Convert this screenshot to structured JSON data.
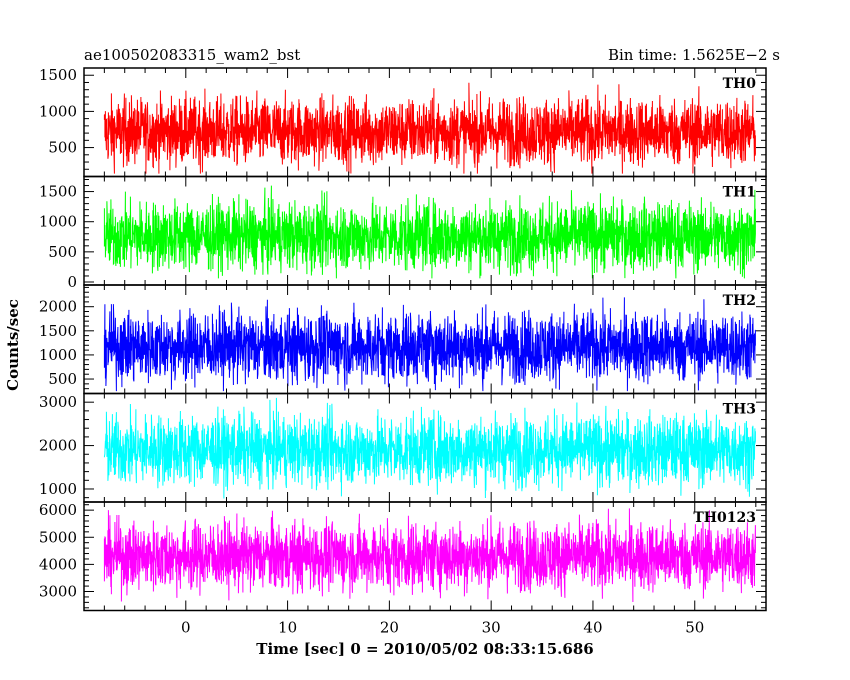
{
  "chart_data": {
    "type": "line",
    "title_left": "ae100502083315_wam2_bst",
    "title_right": "Bin time: 1.5625E−2 s",
    "xlabel": "Time [sec] 0 = 2010/05/02 08:33:15.686",
    "ylabel": "Counts/sec",
    "xlim": [
      -10,
      57
    ],
    "x_ticks": [
      0,
      10,
      20,
      30,
      40,
      50
    ],
    "x_tick_labels": [
      "0",
      "10",
      "20",
      "30",
      "40",
      "50"
    ],
    "x_data_range": [
      -8,
      56
    ],
    "panels": [
      {
        "name": "TH0",
        "color": "#ff0000",
        "ylim": [
          100,
          1600
        ],
        "y_ticks": [
          500,
          1000,
          1500
        ],
        "y_tick_labels": [
          "500",
          "1000",
          "1500"
        ],
        "mean": 720,
        "spread": 230,
        "min": 140,
        "max": 1580
      },
      {
        "name": "TH1",
        "color": "#00ff00",
        "ylim": [
          -50,
          1750
        ],
        "y_ticks": [
          0,
          500,
          1000,
          1500
        ],
        "y_tick_labels": [
          "0",
          "500",
          "1000",
          "1500"
        ],
        "mean": 760,
        "spread": 280,
        "min": 60,
        "max": 1700
      },
      {
        "name": "TH2",
        "color": "#0000ff",
        "ylim": [
          200,
          2450
        ],
        "y_ticks": [
          500,
          1000,
          1500,
          2000
        ],
        "y_tick_labels": [
          "500",
          "1000",
          "1500",
          "2000"
        ],
        "mean": 1170,
        "spread": 360,
        "min": 250,
        "max": 2450
      },
      {
        "name": "TH3",
        "color": "#00ffff",
        "ylim": [
          700,
          3200
        ],
        "y_ticks": [
          1000,
          2000,
          3000
        ],
        "y_tick_labels": [
          "1000",
          "2000",
          "3000"
        ],
        "mean": 1900,
        "spread": 400,
        "min": 780,
        "max": 3200
      },
      {
        "name": "TH0123",
        "color": "#ff00ff",
        "ylim": [
          2300,
          6300
        ],
        "y_ticks": [
          3000,
          4000,
          5000,
          6000
        ],
        "y_tick_labels": [
          "3000",
          "4000",
          "5000",
          "6000"
        ],
        "mean": 4300,
        "spread": 620,
        "min": 2500,
        "max": 6300
      }
    ]
  }
}
